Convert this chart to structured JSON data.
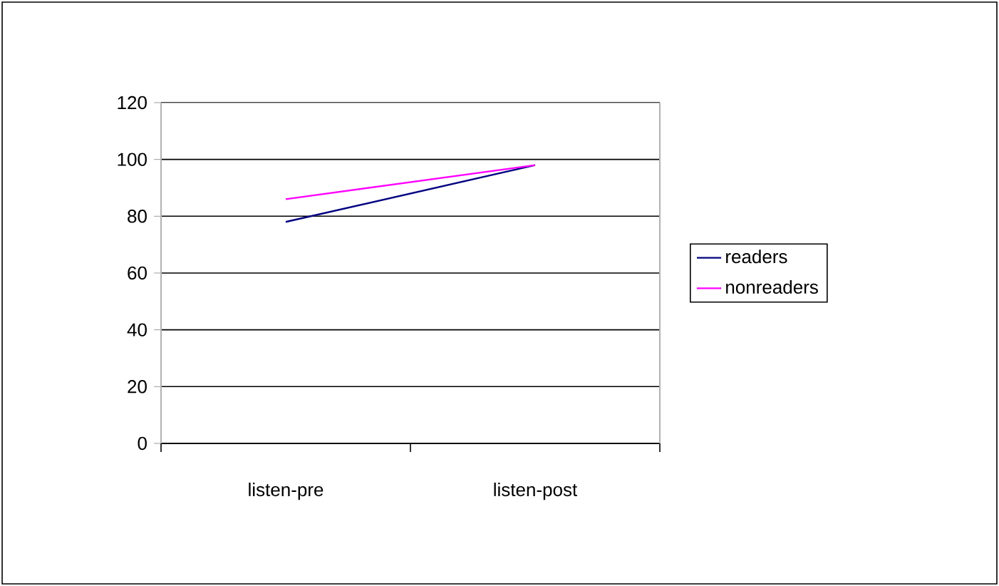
{
  "chart_data": {
    "type": "line",
    "categories": [
      "listen-pre",
      "listen-post"
    ],
    "series": [
      {
        "name": "readers",
        "color": "#000080",
        "values": [
          78,
          98
        ]
      },
      {
        "name": "nonreaders",
        "color": "#ff00ff",
        "values": [
          86,
          98
        ]
      }
    ],
    "ylim": [
      0,
      120
    ],
    "yticks": [
      0,
      20,
      40,
      60,
      80,
      100,
      120
    ],
    "grid": "y",
    "legend": "right",
    "marker": "none"
  }
}
